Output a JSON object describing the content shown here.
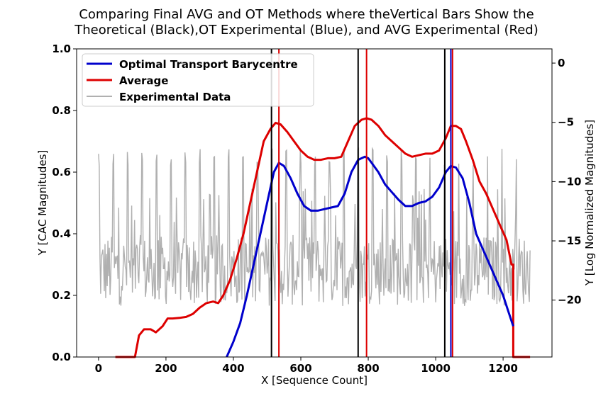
{
  "chart_data": {
    "type": "line",
    "title_lines": [
      "Comparing Final AVG and OT Methods where theVertical Bars Show the",
      "Theoretical (Black),OT Experimental (Blue), and AVG Experimental (Red)"
    ],
    "xlabel": "X [Sequence Count]",
    "ylabel_left": "Y [CAC Magnitudes]",
    "ylabel_right": "Y [Log Normalized Magnitudes]",
    "xlim": [
      -65,
      1345
    ],
    "ylim_left": [
      0.0,
      1.0
    ],
    "ylim_right": [
      -24.8,
      1.2
    ],
    "x_ticks": [
      0,
      200,
      400,
      600,
      800,
      1000,
      1200
    ],
    "y_ticks_left": [
      0.0,
      0.2,
      0.4,
      0.6,
      0.8,
      1.0
    ],
    "y_tick_labels_left": [
      "0.0",
      "0.2",
      "0.4",
      "0.6",
      "0.8",
      "1.0"
    ],
    "y_ticks_right": [
      0,
      -5,
      -10,
      -15,
      -20
    ],
    "y_tick_labels_right": [
      "0",
      "−5",
      "−10",
      "−15",
      "−20"
    ],
    "grid": false,
    "legend_position": "top-left",
    "series": [
      {
        "name": "Optimal Transport Barycentre",
        "axis": "left",
        "color": "#0000cc",
        "x": [
          380,
          400,
          420,
          440,
          460,
          480,
          500,
          520,
          535,
          550,
          570,
          590,
          610,
          630,
          650,
          670,
          690,
          710,
          730,
          750,
          770,
          790,
          800,
          810,
          830,
          850,
          870,
          890,
          910,
          930,
          950,
          970,
          990,
          1010,
          1030,
          1045,
          1060,
          1080,
          1100,
          1120,
          1140,
          1160,
          1180,
          1200,
          1215,
          1230
        ],
        "y": [
          0.0,
          0.05,
          0.11,
          0.2,
          0.3,
          0.4,
          0.5,
          0.6,
          0.63,
          0.62,
          0.58,
          0.53,
          0.49,
          0.475,
          0.475,
          0.48,
          0.485,
          0.49,
          0.53,
          0.6,
          0.64,
          0.65,
          0.645,
          0.63,
          0.6,
          0.56,
          0.535,
          0.51,
          0.49,
          0.49,
          0.5,
          0.505,
          0.52,
          0.55,
          0.6,
          0.62,
          0.615,
          0.58,
          0.5,
          0.4,
          0.35,
          0.3,
          0.25,
          0.2,
          0.15,
          0.1
        ]
      },
      {
        "name": "Average",
        "axis": "left",
        "color": "#dd0000",
        "x": [
          50,
          108,
          120,
          135,
          155,
          170,
          190,
          205,
          220,
          240,
          260,
          280,
          300,
          320,
          340,
          355,
          370,
          390,
          410,
          430,
          450,
          470,
          490,
          510,
          525,
          540,
          560,
          580,
          600,
          620,
          640,
          660,
          680,
          700,
          720,
          740,
          760,
          780,
          795,
          810,
          830,
          850,
          870,
          890,
          910,
          930,
          950,
          970,
          990,
          1010,
          1030,
          1045,
          1060,
          1075,
          1090,
          1110,
          1130,
          1150,
          1170,
          1190,
          1210,
          1225,
          1230,
          1230,
          1280
        ],
        "y": [
          0.0,
          0.0,
          0.07,
          0.09,
          0.09,
          0.08,
          0.1,
          0.125,
          0.125,
          0.127,
          0.13,
          0.14,
          0.16,
          0.175,
          0.18,
          0.175,
          0.2,
          0.25,
          0.32,
          0.4,
          0.5,
          0.6,
          0.7,
          0.74,
          0.76,
          0.755,
          0.73,
          0.7,
          0.67,
          0.65,
          0.64,
          0.64,
          0.645,
          0.645,
          0.65,
          0.7,
          0.75,
          0.77,
          0.775,
          0.77,
          0.75,
          0.72,
          0.7,
          0.68,
          0.66,
          0.65,
          0.655,
          0.66,
          0.66,
          0.67,
          0.71,
          0.75,
          0.75,
          0.74,
          0.7,
          0.64,
          0.57,
          0.53,
          0.48,
          0.43,
          0.38,
          0.3,
          0.3,
          0.0,
          0.0
        ]
      },
      {
        "name": "Experimental Data",
        "axis": "right",
        "color": "#b0b0b0",
        "x_start": 0,
        "x_end": 1280,
        "points": 600,
        "baseline": -17.5,
        "peak_period": 42.7,
        "peak_value": -7.2,
        "noise_amplitude": 3
      }
    ],
    "vertical_lines": [
      {
        "label": "Theoretical",
        "x": 513,
        "color": "#000000"
      },
      {
        "label": "Theoretical",
        "x": 770,
        "color": "#000000"
      },
      {
        "label": "Theoretical",
        "x": 1027,
        "color": "#000000"
      },
      {
        "label": "AVG Experimental",
        "x": 535,
        "color": "#dd0000"
      },
      {
        "label": "AVG Experimental",
        "x": 795,
        "color": "#dd0000"
      },
      {
        "label": "AVG Experimental",
        "x": 1050,
        "color": "#dd0000"
      },
      {
        "label": "OT Experimental",
        "x": 1045,
        "color": "#0000cc"
      }
    ]
  }
}
